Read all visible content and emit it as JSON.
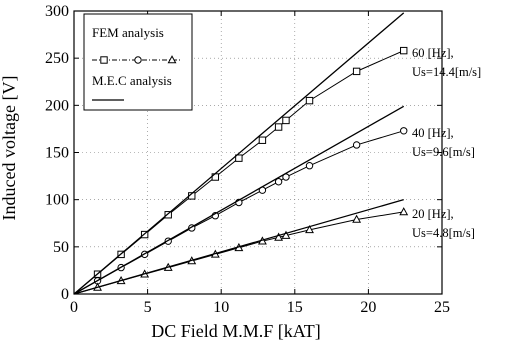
{
  "chart_data": {
    "type": "line",
    "title": "",
    "xlabel": "DC Field M.M.F [kAT]",
    "ylabel": "Induced voltage [V]",
    "xlim": [
      0,
      25
    ],
    "ylim": [
      0,
      300
    ],
    "xticks": [
      0,
      5,
      10,
      15,
      20,
      25
    ],
    "yticks": [
      0,
      50,
      100,
      150,
      200,
      250,
      300
    ],
    "grid": "dotted",
    "legend": {
      "placement": "top-left",
      "entries": [
        {
          "label": "FEM analysis",
          "style": "line-with-markers"
        },
        {
          "label": "M.E.C analysis",
          "style": "solid-line"
        }
      ]
    },
    "annotations": [
      {
        "text": "60 [Hz],",
        "series": "60 Hz"
      },
      {
        "text": "Us=14.4[m/s]",
        "series": "60 Hz"
      },
      {
        "text": "40 [Hz],",
        "series": "40 Hz"
      },
      {
        "text": "Us=9.6[m/s]",
        "series": "40 Hz"
      },
      {
        "text": "20 [Hz],",
        "series": "20 Hz"
      },
      {
        "text": "Us=4.8[m/s]",
        "series": "20 Hz"
      }
    ],
    "series": [
      {
        "group": "60 Hz",
        "method": "FEM analysis",
        "marker": "square",
        "x": [
          0,
          1.6,
          3.2,
          4.8,
          6.4,
          8.0,
          9.6,
          11.2,
          12.8,
          13.9,
          14.4,
          16.0,
          19.2,
          22.4
        ],
        "y": [
          0,
          21,
          42,
          63,
          84,
          104,
          124,
          144,
          163,
          177,
          184,
          205,
          236,
          258
        ]
      },
      {
        "group": "40 Hz",
        "method": "FEM analysis",
        "marker": "circle",
        "x": [
          0,
          1.6,
          3.2,
          4.8,
          6.4,
          8.0,
          9.6,
          11.2,
          12.8,
          13.9,
          14.4,
          16.0,
          19.2,
          22.4
        ],
        "y": [
          0,
          14,
          28,
          42,
          56,
          70,
          83,
          97,
          110,
          119,
          124,
          136,
          158,
          173
        ]
      },
      {
        "group": "20 Hz",
        "method": "FEM analysis",
        "marker": "triangle",
        "x": [
          0,
          1.6,
          3.2,
          4.8,
          6.4,
          8.0,
          9.6,
          11.2,
          12.8,
          13.9,
          14.4,
          16.0,
          19.2,
          22.4
        ],
        "y": [
          0,
          7,
          14,
          21,
          28,
          35,
          42,
          49,
          56,
          60,
          62,
          68,
          79,
          87
        ]
      },
      {
        "group": "60 Hz",
        "method": "M.E.C analysis",
        "marker": "none",
        "x": [
          0,
          22.4
        ],
        "y": [
          0,
          298
        ]
      },
      {
        "group": "40 Hz",
        "method": "M.E.C analysis",
        "marker": "none",
        "x": [
          0,
          22.4
        ],
        "y": [
          0,
          199
        ]
      },
      {
        "group": "20 Hz",
        "method": "M.E.C analysis",
        "marker": "none",
        "x": [
          0,
          22.4
        ],
        "y": [
          0,
          100
        ]
      }
    ]
  }
}
